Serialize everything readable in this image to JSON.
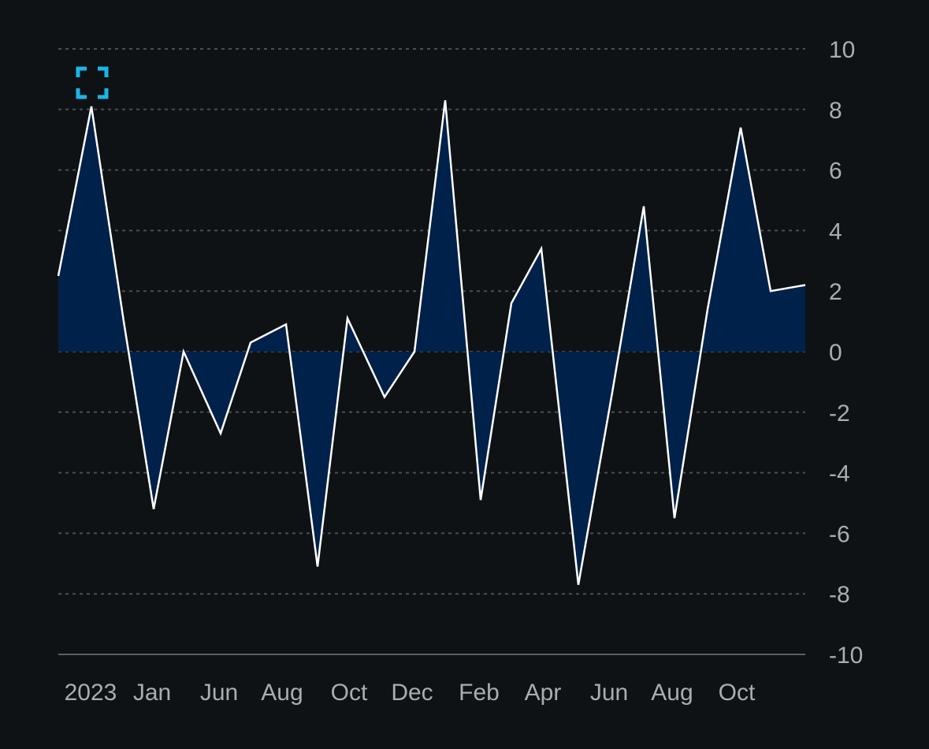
{
  "colors": {
    "background": "#0f1215",
    "area_fill": "#00214a",
    "line": "#ffffff",
    "grid": "#4a4f55",
    "axis": "#5a5f66",
    "tick_text": "#a9adb3",
    "accent": "#1bb6e6"
  },
  "controls": {
    "expand_icon": "expand-icon"
  },
  "chart_data": {
    "type": "area",
    "x_tick_labels": [
      "2023",
      "Jan",
      "Jun",
      "Aug",
      "Oct",
      "Dec",
      "Feb",
      "Apr",
      "Jun",
      "Aug",
      "Oct"
    ],
    "y_tick_labels": [
      "10",
      "8",
      "6",
      "4",
      "2",
      "0",
      "-2",
      "-4",
      "-6",
      "-8",
      "-10"
    ],
    "ylim": [
      -10,
      10
    ],
    "y_axis_position": "right",
    "grid": true,
    "baseline": 0,
    "series": [
      {
        "values": [
          2.5,
          8.1,
          1.0,
          -5.2,
          0.0,
          -2.7,
          0.3,
          0.9,
          -7.1,
          1.1,
          -1.5,
          0.0,
          8.3,
          -4.9,
          1.6,
          3.4,
          -7.7,
          -1.5,
          4.8,
          -5.5,
          1.4,
          7.4,
          2.0,
          2.2
        ]
      }
    ]
  }
}
